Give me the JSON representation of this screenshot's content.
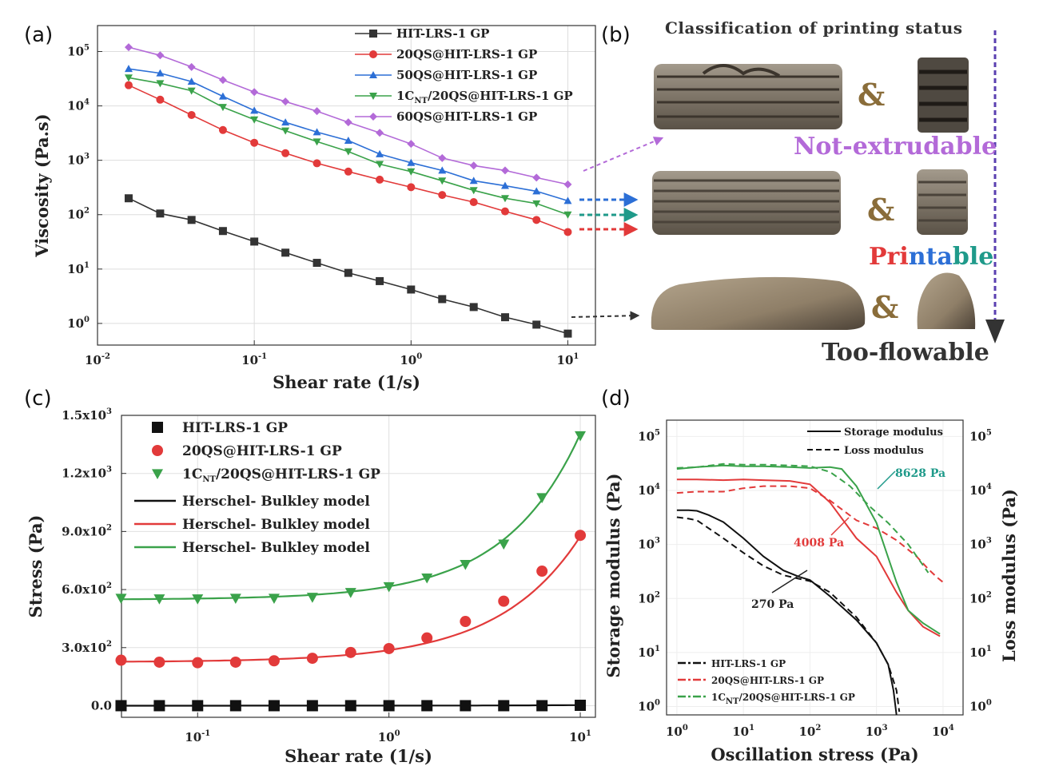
{
  "panel_labels": {
    "a": "(a)",
    "b": "(b)",
    "c": "(c)",
    "d": "(d)"
  },
  "colors": {
    "black": "#333333",
    "red": "#e23a3a",
    "blue": "#2c6fd6",
    "green": "#3aa24a",
    "purple": "#b36ad8",
    "teal": "#1f9a8a"
  },
  "chart_data": [
    {
      "id": "a",
      "type": "line",
      "xlabel": "Shear rate (1/s)",
      "ylabel": "Viscosity (Pa.s)",
      "xscale": "log",
      "yscale": "log",
      "xlim": [
        0.01,
        15
      ],
      "ylim": [
        0.4,
        300000
      ],
      "xticks": [
        {
          "v": 0.01,
          "base": "10",
          "exp": "-2"
        },
        {
          "v": 0.1,
          "base": "10",
          "exp": "-1"
        },
        {
          "v": 1,
          "base": "10",
          "exp": "0"
        },
        {
          "v": 10,
          "base": "10",
          "exp": "1"
        }
      ],
      "yticks": [
        {
          "v": 1,
          "base": "10",
          "exp": "0"
        },
        {
          "v": 10,
          "base": "10",
          "exp": "1"
        },
        {
          "v": 100,
          "base": "10",
          "exp": "2"
        },
        {
          "v": 1000,
          "base": "10",
          "exp": "3"
        },
        {
          "v": 10000,
          "base": "10",
          "exp": "4"
        },
        {
          "v": 100000,
          "base": "10",
          "exp": "5"
        }
      ],
      "grid": true,
      "legend_position": "top-right",
      "x": [
        0.0158,
        0.0251,
        0.0398,
        0.0631,
        0.1,
        0.158,
        0.251,
        0.398,
        0.631,
        1,
        1.58,
        2.51,
        3.98,
        6.31,
        10
      ],
      "series": [
        {
          "name": "HIT-LRS-1 GP",
          "color": "#333333",
          "marker": "square",
          "values": [
            200,
            105,
            80,
            50,
            32,
            20,
            13,
            8.5,
            6,
            4.2,
            2.8,
            2,
            1.3,
            0.95,
            0.65
          ]
        },
        {
          "name": "20QS@HIT-LRS-1 GP",
          "color": "#e23a3a",
          "marker": "circle",
          "values": [
            24000,
            13000,
            6800,
            3600,
            2100,
            1350,
            880,
            620,
            440,
            320,
            230,
            170,
            115,
            80,
            48
          ]
        },
        {
          "name": "50QS@HIT-LRS-1 GP",
          "color": "#2c6fd6",
          "marker": "triangle-up",
          "values": [
            48000,
            40000,
            28000,
            15000,
            8200,
            5000,
            3300,
            2300,
            1300,
            900,
            650,
            420,
            340,
            270,
            180
          ]
        },
        {
          "name": "1CNT/20QS@HIT-LRS-1 GP",
          "label_main": "1C",
          "label_sub": "NT",
          "label_rest": "/20QS@HIT-LRS-1 GP",
          "color": "#3aa24a",
          "marker": "triangle-down",
          "values": [
            33000,
            26000,
            19000,
            9500,
            5600,
            3500,
            2200,
            1450,
            850,
            620,
            420,
            280,
            200,
            160,
            100
          ]
        },
        {
          "name": "60QS@HIT-LRS-1 GP",
          "color": "#b36ad8",
          "marker": "diamond",
          "values": [
            120000,
            85000,
            52000,
            30000,
            18000,
            12000,
            8000,
            5000,
            3200,
            2000,
            1100,
            800,
            650,
            480,
            360
          ]
        }
      ]
    },
    {
      "id": "c",
      "type": "scatter",
      "xlabel": "Shear rate (1/s)",
      "ylabel": "Stress (Pa)",
      "xscale": "log",
      "yscale": "linear",
      "xlim": [
        0.04,
        12
      ],
      "ylim": [
        -60,
        1500
      ],
      "xticks": [
        {
          "v": 0.1,
          "base": "10",
          "exp": "-1"
        },
        {
          "v": 1,
          "base": "10",
          "exp": "0"
        },
        {
          "v": 10,
          "base": "10",
          "exp": "1"
        }
      ],
      "yticks": [
        {
          "v": 0,
          "label": "0.0"
        },
        {
          "v": 300,
          "label": "3.0x10",
          "exp": "2"
        },
        {
          "v": 600,
          "label": "6.0x10",
          "exp": "2"
        },
        {
          "v": 900,
          "label": "9.0x10",
          "exp": "2"
        },
        {
          "v": 1200,
          "label": "1.2x10",
          "exp": "3"
        },
        {
          "v": 1500,
          "label": "1.5x10",
          "exp": "3"
        }
      ],
      "grid": true,
      "legend_position": "top-left",
      "x": [
        0.0398,
        0.0631,
        0.1,
        0.158,
        0.251,
        0.398,
        0.631,
        1,
        1.58,
        2.51,
        3.98,
        6.31,
        10
      ],
      "series": [
        {
          "name": "HIT-LRS-1 GP",
          "color": "#111111",
          "marker": "square",
          "values": [
            0,
            0,
            0,
            0,
            0,
            0,
            0,
            0,
            0,
            0,
            0,
            0,
            2
          ]
        },
        {
          "name": "20QS@HIT-LRS-1 GP",
          "color": "#e23a3a",
          "marker": "circle",
          "values": [
            235,
            225,
            222,
            225,
            232,
            245,
            275,
            295,
            350,
            435,
            540,
            695,
            880
          ]
        },
        {
          "name": "1CNT/20QS@HIT-LRS-1 GP",
          "label_main": "1C",
          "label_sub": "NT",
          "label_rest": "/20QS@HIT-LRS-1 GP",
          "color": "#3aa24a",
          "marker": "triangle-down",
          "values": [
            555,
            552,
            552,
            555,
            555,
            560,
            585,
            615,
            660,
            730,
            835,
            1075,
            1395
          ]
        }
      ],
      "models": [
        {
          "name": "Herschel- Bulkley model",
          "color": "#111111",
          "tau0": 0,
          "k": 0.3,
          "n": 1
        },
        {
          "name": "Herschel- Bulkley model",
          "color": "#e23a3a",
          "tau0": 225,
          "k": 62,
          "n": 1.02
        },
        {
          "name": "Herschel- Bulkley model",
          "color": "#3aa24a",
          "tau0": 548,
          "k": 68,
          "n": 1.1
        }
      ]
    },
    {
      "id": "d",
      "type": "line",
      "xlabel": "Oscillation stress (Pa)",
      "ylabel": "Storage modulus (Pa)",
      "y2label": "Loss modulus (Pa)",
      "xscale": "log",
      "yscale": "log",
      "xlim": [
        0.7,
        20000
      ],
      "ylim": [
        0.7,
        200000
      ],
      "xticks": [
        {
          "v": 1,
          "base": "10",
          "exp": "0"
        },
        {
          "v": 10,
          "base": "10",
          "exp": "1"
        },
        {
          "v": 100,
          "base": "10",
          "exp": "2"
        },
        {
          "v": 1000,
          "base": "10",
          "exp": "3"
        },
        {
          "v": 10000,
          "base": "10",
          "exp": "4"
        }
      ],
      "yticks": [
        {
          "v": 1,
          "base": "10",
          "exp": "0"
        },
        {
          "v": 10,
          "base": "10",
          "exp": "1"
        },
        {
          "v": 100,
          "base": "10",
          "exp": "2"
        },
        {
          "v": 1000,
          "base": "10",
          "exp": "3"
        },
        {
          "v": 10000,
          "base": "10",
          "exp": "4"
        },
        {
          "v": 100000,
          "base": "10",
          "exp": "5"
        }
      ],
      "grid": true,
      "legend_style": [
        {
          "label": "Storage modulus",
          "dash": "solid"
        },
        {
          "label": "Loss modulus",
          "dash": "dashed"
        }
      ],
      "legend_samples": [
        {
          "name": "HIT-LRS-1 GP",
          "color": "#111111"
        },
        {
          "name": "20QS@HIT-LRS-1 GP",
          "color": "#e23a3a"
        },
        {
          "name": "1CNT/20QS@HIT-LRS-1 GP",
          "label_main": "1C",
          "label_sub": "NT",
          "label_rest": "/20QS@HIT-LRS-1 GP",
          "color": "#3aa24a"
        }
      ],
      "series": [
        {
          "name": "HIT-LRS-1 GP storage",
          "color": "#111111",
          "dash": "solid",
          "x": [
            1,
            1.5,
            2,
            3,
            5,
            10,
            20,
            40,
            70,
            100,
            200,
            500,
            1000,
            1500,
            1800,
            2000
          ],
          "values": [
            4300,
            4300,
            4200,
            3500,
            2600,
            1300,
            600,
            330,
            250,
            220,
            110,
            40,
            15,
            6,
            2,
            0.7
          ]
        },
        {
          "name": "HIT-LRS-1 GP loss",
          "color": "#111111",
          "dash": "dashed",
          "x": [
            1,
            1.5,
            2,
            3,
            5,
            10,
            20,
            40,
            70,
            100,
            200,
            500,
            1000,
            1500,
            2000,
            2200
          ],
          "values": [
            3200,
            3000,
            2800,
            2000,
            1300,
            700,
            400,
            270,
            230,
            210,
            130,
            45,
            15,
            6,
            2,
            0.8
          ]
        },
        {
          "name": "20QS@HIT-LRS-1 GP storage",
          "color": "#e23a3a",
          "dash": "solid",
          "x": [
            1,
            2,
            5,
            10,
            20,
            50,
            100,
            200,
            500,
            1000,
            2000,
            3000,
            5000,
            9000
          ],
          "values": [
            16000,
            16000,
            15500,
            16000,
            15500,
            15000,
            13000,
            6000,
            1300,
            600,
            130,
            60,
            30,
            20
          ]
        },
        {
          "name": "20QS@HIT-LRS-1 GP loss",
          "color": "#e23a3a",
          "dash": "dashed",
          "x": [
            1,
            2,
            5,
            10,
            20,
            50,
            100,
            200,
            500,
            1000,
            2000,
            4000,
            6000,
            8000,
            10000
          ],
          "values": [
            9000,
            9500,
            9500,
            11000,
            12000,
            12000,
            11000,
            6500,
            2800,
            2000,
            1200,
            600,
            350,
            250,
            200
          ]
        },
        {
          "name": "1CNT/20QS@HIT-LRS-1 GP storage",
          "color": "#3aa24a",
          "dash": "solid",
          "x": [
            1,
            2,
            5,
            10,
            20,
            50,
            100,
            200,
            300,
            500,
            1000,
            2000,
            3000,
            5000,
            9000
          ],
          "values": [
            25000,
            27000,
            29000,
            28000,
            28000,
            27000,
            26000,
            27000,
            25000,
            12000,
            2500,
            200,
            60,
            35,
            22
          ]
        },
        {
          "name": "1CNT/20QS@HIT-LRS-1 GP loss",
          "color": "#3aa24a",
          "dash": "dashed",
          "x": [
            1,
            2,
            5,
            10,
            20,
            50,
            100,
            200,
            400,
            800,
            1500,
            3000,
            6000
          ],
          "values": [
            26000,
            27000,
            31000,
            30000,
            30000,
            29000,
            28000,
            22000,
            12000,
            5000,
            2500,
            1000,
            300
          ]
        }
      ],
      "annotations": [
        {
          "text": "270 Pa",
          "color": "#222222"
        },
        {
          "text": "4008 Pa",
          "color": "#e23a3a"
        },
        {
          "text": "8628 Pa",
          "color": "#1f9a8a"
        }
      ]
    }
  ],
  "panel_b": {
    "title": "Classification of printing status",
    "amp": "&",
    "not_extrudable": "Not-extrudable",
    "printable_parts": [
      {
        "text": "Pri",
        "color": "#e23a3a"
      },
      {
        "text": "nta",
        "color": "#2c6fd6"
      },
      {
        "text": "ble",
        "color": "#1f9a8a"
      }
    ],
    "too_flowable": "Too-flowable"
  }
}
